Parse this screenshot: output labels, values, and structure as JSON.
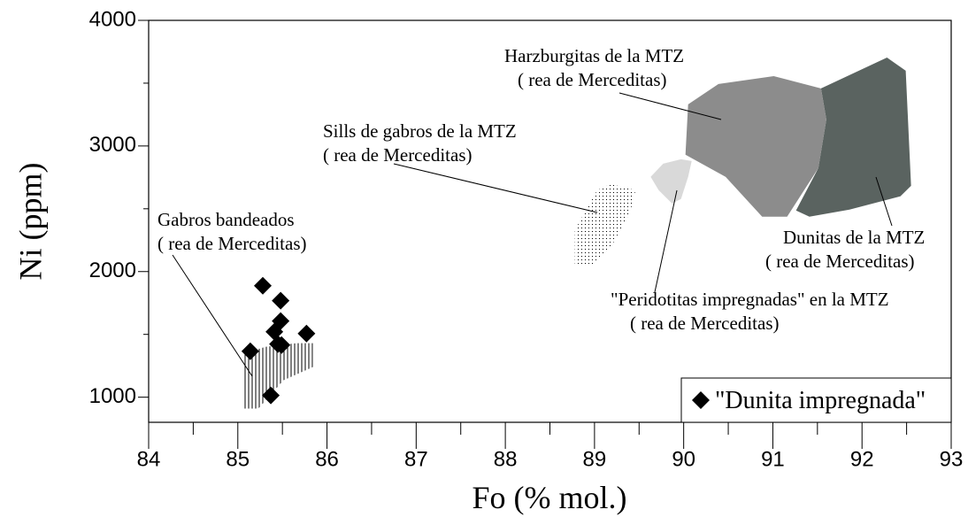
{
  "chart_data": {
    "type": "scatter",
    "xlabel": "Fo (% mol.)",
    "ylabel": "Ni (ppm)",
    "xlim": [
      84,
      93
    ],
    "ylim": [
      800,
      4000
    ],
    "xticks": [
      84,
      85,
      86,
      87,
      88,
      89,
      90,
      91,
      92,
      93
    ],
    "yticks": [
      1000,
      2000,
      3000,
      4000
    ],
    "xminor_ticks": [
      84.5,
      85.5,
      86.5,
      87.5,
      88.5,
      89.5,
      90.5,
      91.5,
      92.5
    ],
    "yminor_ticks": [
      1500,
      2500,
      3500
    ],
    "legend": "lower right",
    "series": [
      {
        "name": "\"Dunita impregnada\"",
        "color": "#000000",
        "x": [
          85.28,
          85.48,
          85.14,
          85.77,
          85.48,
          85.41,
          85.45,
          85.49,
          85.37
        ],
        "values": [
          1887,
          1768,
          1366,
          1507,
          1606,
          1521,
          1423,
          1415,
          1014
        ]
      }
    ],
    "regions": [
      {
        "label": [
          "Gabros bandeados",
          "( rea de Merceditas)"
        ],
        "pattern": "vlines",
        "x": [
          85.06,
          85.31,
          85.66,
          85.84,
          85.84,
          85.51,
          85.23,
          85.06
        ],
        "y": [
          1345,
          1401,
          1430,
          1430,
          1240,
          1134,
          909,
          909
        ]
      },
      {
        "label": [
          "Sills de gabros de la MTZ",
          "( rea de Merceditas)"
        ],
        "pattern": "dots",
        "x": [
          88.78,
          89.03,
          89.18,
          89.46,
          89.4,
          89.18,
          88.96,
          88.78
        ],
        "y": [
          2331,
          2648,
          2697,
          2648,
          2472,
          2190,
          2049,
          2049
        ]
      },
      {
        "label": [
          "\"Peridotitas impregnadas\" en la MTZ",
          "( rea de Merceditas)"
        ],
        "color": "#d9d9d9",
        "x": [
          89.63,
          89.77,
          89.97,
          90.09,
          90.05,
          89.97,
          89.87,
          89.72
        ],
        "y": [
          2754,
          2859,
          2894,
          2880,
          2754,
          2578,
          2542,
          2648
        ]
      },
      {
        "label": [
          "Dunitas de la MTZ",
          "( rea de Merceditas)"
        ],
        "color": "#5a6360",
        "x": [
          91.54,
          92.28,
          92.49,
          92.55,
          92.43,
          91.86,
          91.41,
          91.26,
          91.51,
          91.6
        ],
        "y": [
          3458,
          3704,
          3599,
          2683,
          2599,
          2493,
          2437,
          2486,
          2824,
          3211
        ]
      },
      {
        "label": [
          "Harzburgitas de la MTZ",
          "( rea de Merceditas)"
        ],
        "color": "#8c8c8c",
        "x": [
          90.05,
          90.39,
          91.01,
          91.54,
          91.6,
          91.51,
          91.16,
          90.88,
          90.47,
          90.02
        ],
        "y": [
          3331,
          3493,
          3556,
          3458,
          3211,
          2824,
          2437,
          2437,
          2754,
          2930
        ]
      }
    ]
  }
}
